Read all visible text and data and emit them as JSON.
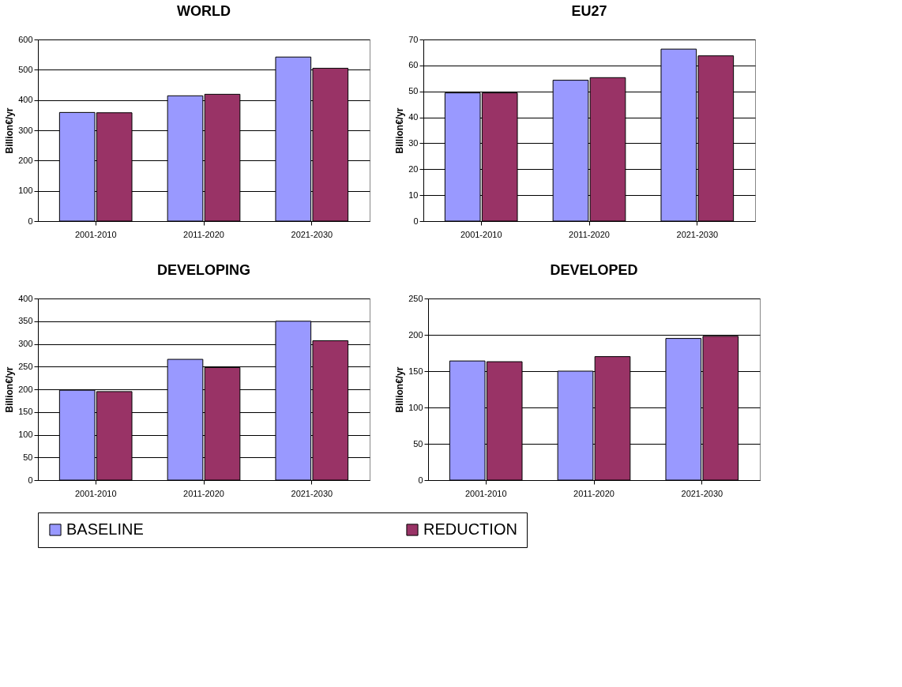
{
  "chart_data": [
    {
      "type": "bar",
      "title": "WORLD",
      "ylabel": "Billion€/yr",
      "categories": [
        "2001-2010",
        "2011-2020",
        "2021-2030"
      ],
      "ylim": [
        0,
        600
      ],
      "yticks": [
        0,
        100,
        200,
        300,
        400,
        500,
        600
      ],
      "grid": "y",
      "legend": "bottom",
      "series": [
        {
          "name": "BASELINE",
          "color": "#9999ff",
          "values": [
            359,
            414,
            542
          ]
        },
        {
          "name": "REDUCTION",
          "color": "#993366",
          "values": [
            358,
            419,
            505
          ]
        }
      ]
    },
    {
      "type": "bar",
      "title": "EU27",
      "ylabel": "Billion€/yr",
      "categories": [
        "2001-2010",
        "2011-2020",
        "2021-2030"
      ],
      "ylim": [
        0,
        70
      ],
      "yticks": [
        0,
        10,
        20,
        30,
        40,
        50,
        60,
        70
      ],
      "grid": "y",
      "legend": "bottom",
      "series": [
        {
          "name": "BASELINE",
          "color": "#9999ff",
          "values": [
            49.4,
            54.3,
            66.3
          ]
        },
        {
          "name": "REDUCTION",
          "color": "#993366",
          "values": [
            49.4,
            55.3,
            63.7
          ]
        }
      ]
    },
    {
      "type": "bar",
      "title": "DEVELOPING",
      "ylabel": "Billion€/yr",
      "categories": [
        "2001-2010",
        "2011-2020",
        "2021-2030"
      ],
      "ylim": [
        0,
        400
      ],
      "yticks": [
        0,
        50,
        100,
        150,
        200,
        250,
        300,
        350,
        400
      ],
      "grid": "y",
      "legend": "bottom",
      "series": [
        {
          "name": "BASELINE",
          "color": "#9999ff",
          "values": [
            198,
            266,
            350
          ]
        },
        {
          "name": "REDUCTION",
          "color": "#993366",
          "values": [
            195,
            248,
            307
          ]
        }
      ]
    },
    {
      "type": "bar",
      "title": "DEVELOPED",
      "ylabel": "Billion€/yr",
      "categories": [
        "2001-2010",
        "2011-2020",
        "2021-2030"
      ],
      "ylim": [
        0,
        250
      ],
      "yticks": [
        0,
        50,
        100,
        150,
        200,
        250
      ],
      "grid": "y",
      "legend": "bottom",
      "series": [
        {
          "name": "BASELINE",
          "color": "#9999ff",
          "values": [
            164,
            150,
            195
          ]
        },
        {
          "name": "REDUCTION",
          "color": "#993366",
          "values": [
            163,
            170,
            198
          ]
        }
      ]
    }
  ]
}
